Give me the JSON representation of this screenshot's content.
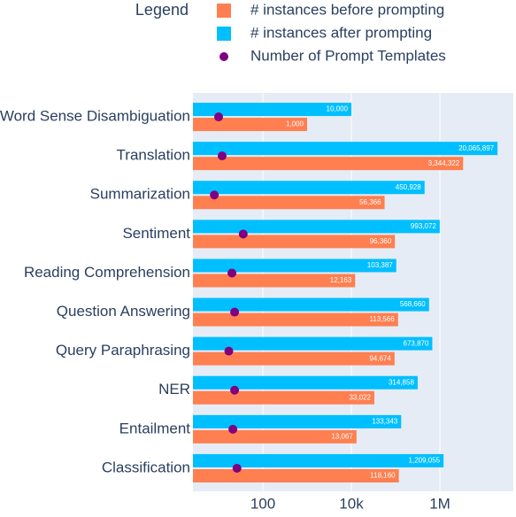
{
  "chart_data": {
    "type": "bar",
    "orientation": "horizontal",
    "legend_title": "Legend",
    "categories": [
      "Word Sense Disambiguation",
      "Translation",
      "Summarization",
      "Sentiment",
      "Reading Comprehension",
      "Question Answering",
      "Query Paraphrasing",
      "NER",
      "Entailment",
      "Classification"
    ],
    "series": [
      {
        "name": "# instances before prompting",
        "color": "#ff7f50",
        "values": [
          1000,
          3344322,
          56366,
          96360,
          12163,
          113566,
          94674,
          33022,
          13067,
          118160
        ],
        "value_labels": [
          "1,000",
          "3,344,322",
          "56,366",
          "96,360",
          "12,163",
          "113,566",
          "94,674",
          "33,022",
          "13,067",
          "118,160"
        ]
      },
      {
        "name": "# instances after prompting",
        "color": "#00bfff",
        "values": [
          10000,
          20065897,
          450928,
          993072,
          103387,
          568660,
          673870,
          314858,
          133343,
          1209055
        ],
        "value_labels": [
          "10,000",
          "20,065,897",
          "450,928",
          "993,072",
          "103,387",
          "568,660",
          "673,870",
          "314,858",
          "133,343",
          "1,209,055"
        ]
      },
      {
        "name": "Number of Prompt Templates",
        "color": "#800080",
        "type": "scatter",
        "values": [
          10,
          12,
          8,
          36,
          20,
          23,
          17,
          23,
          21,
          26
        ]
      }
    ],
    "xscale": "log",
    "xlim": [
      2.63,
      45700000
    ],
    "xticks": [
      100,
      {
        "value": 10000,
        "label": "10k"
      },
      {
        "value": 1000000,
        "label": "1M"
      }
    ],
    "grid": true
  }
}
